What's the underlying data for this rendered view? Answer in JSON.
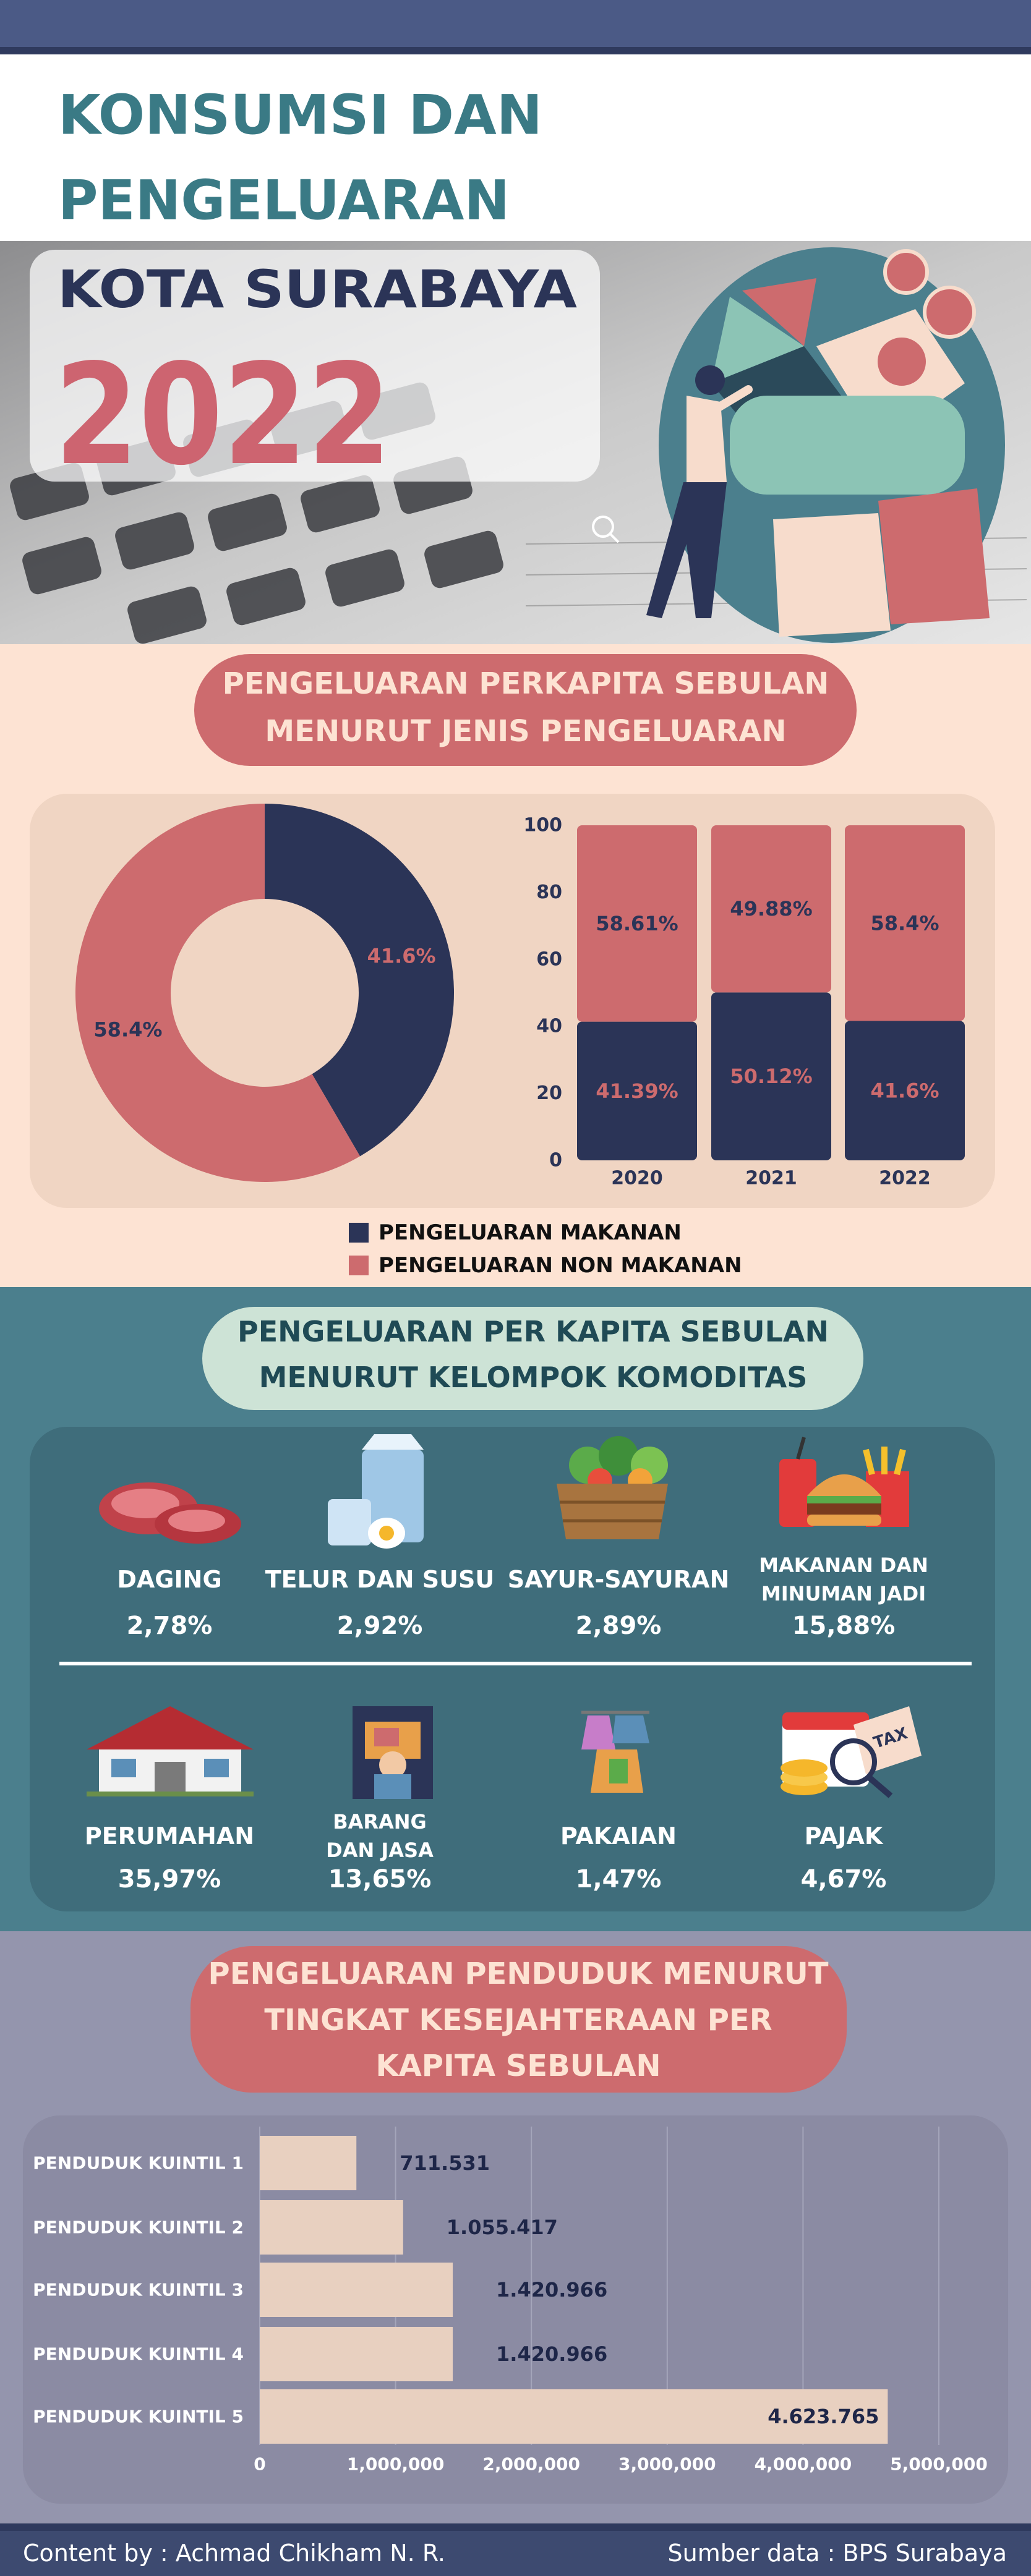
{
  "header": {
    "title": [
      "KONSUMSI DAN",
      "PENGELUARAN"
    ],
    "city": "KOTA SURABAYA",
    "year": "2022"
  },
  "section_1": {
    "title": [
      "PENGELUARAN PERKAPITA SEBULAN",
      "MENURUT JENIS PENGELUARAN"
    ]
  },
  "section_2": {
    "title": [
      "PENGELUARAN PER KAPITA SEBULAN",
      "MENURUT KELOMPOK KOMODITAS"
    ],
    "items": [
      {
        "label": [
          "DAGING"
        ],
        "value": "2,78%"
      },
      {
        "label": [
          "TELUR DAN SUSU"
        ],
        "value": "2,92%"
      },
      {
        "label": [
          "SAYUR-SAYURAN"
        ],
        "value": "2,89%"
      },
      {
        "label": [
          "MAKANAN DAN",
          "MINUMAN JADI"
        ],
        "value": "15,88%"
      },
      {
        "label": [
          "PERUMAHAN"
        ],
        "value": "35,97%"
      },
      {
        "label": [
          "BARANG",
          "DAN JASA"
        ],
        "value": "13,65%"
      },
      {
        "label": [
          "PAKAIAN"
        ],
        "value": "1,47%"
      },
      {
        "label": [
          "PAJAK"
        ],
        "value": "4,67%"
      }
    ]
  },
  "section_3": {
    "title": [
      "PENGELUARAN PENDUDUK MENURUT",
      "TINGKAT KESEJAHTERAAN PER",
      "KAPITA SEBULAN"
    ]
  },
  "chart_data": [
    {
      "type": "pie",
      "values": [
        41.6,
        58.4
      ],
      "value_labels": [
        "41.6%",
        "58.4%"
      ],
      "colors": [
        "#2b3457",
        "#cd6b6e"
      ]
    },
    {
      "type": "bar",
      "stacked": true,
      "categories": [
        "2020",
        "2021",
        "2022"
      ],
      "series": [
        {
          "name": "PENGELUARAN MAKANAN",
          "color": "#2b3457",
          "values": [
            41.39,
            50.12,
            41.6
          ],
          "value_labels": [
            "41.39%",
            "50.12%",
            "41.6%"
          ]
        },
        {
          "name": "PENGELUARAN NON MAKANAN",
          "color": "#cd6b6e",
          "values": [
            58.61,
            49.88,
            58.4
          ],
          "value_labels": [
            "58.61%",
            "49.88%",
            "58.4%"
          ]
        }
      ],
      "ylim": [
        0,
        100
      ],
      "yticks": [
        0,
        20,
        40,
        60,
        80,
        100
      ]
    },
    {
      "type": "barh",
      "categories": [
        "PENDUDUK KUINTIL 1",
        "PENDUDUK KUINTIL 2",
        "PENDUDUK KUINTIL 3",
        "PENDUDUK KUINTIL 4",
        "PENDUDUK KUINTIL 5"
      ],
      "values": [
        711531,
        1055417,
        1420966,
        1420966,
        4623765
      ],
      "value_labels": [
        "711.531",
        "1.055.417",
        "1.420.966",
        "1.420.966",
        "4.623.765"
      ],
      "color": "#e8d0c0",
      "grid": true,
      "xlim": [
        0,
        5000000
      ],
      "xticks": [
        0,
        {
          "value": 1000000,
          "label": "1,000,000"
        },
        {
          "value": 2000000,
          "label": "2,000,000"
        },
        {
          "value": 3000000,
          "label": "3,000,000"
        },
        {
          "value": 4000000,
          "label": "4,000,000"
        },
        {
          "value": 5000000,
          "label": "5,000,000"
        }
      ]
    }
  ],
  "footer": {
    "credit": "Content by : Achmad Chikham N. R.",
    "source": "Sumber data : BPS Surabaya"
  }
}
